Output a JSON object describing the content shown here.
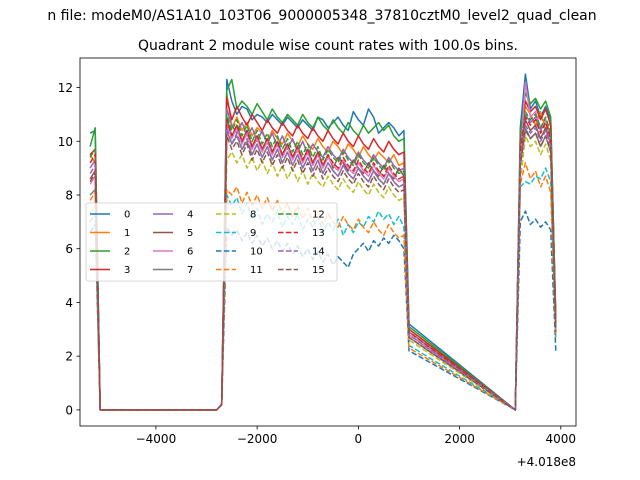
{
  "suptitle": "n file: modeM0/AS1A10_103T06_9000005348_37810cztM0_level2_quad_clean",
  "chart_data": {
    "type": "line",
    "title": "Quadrant 2 module wise count rates with 100.0s bins.",
    "xlabel": "",
    "ylabel": "",
    "x_offset_label": "+4.018e8",
    "xlim": [
      -5500,
      4300
    ],
    "ylim": [
      -0.6,
      13.1
    ],
    "xticks": [
      -4000,
      -2000,
      0,
      2000,
      4000
    ],
    "xtick_labels": [
      "−4000",
      "−2000",
      "0",
      "2000",
      "4000"
    ],
    "yticks": [
      0,
      2,
      4,
      6,
      8,
      10,
      12
    ],
    "ytick_labels": [
      "0",
      "2",
      "4",
      "6",
      "8",
      "10",
      "12"
    ],
    "grid": false,
    "legend": {
      "placement": "center-left",
      "columns": 4
    },
    "x": [
      -5300,
      -5200,
      -5100,
      -2800,
      -2700,
      -2600,
      -2500,
      -2400,
      -2300,
      -2200,
      -2100,
      -2000,
      -1900,
      -1800,
      -1700,
      -1600,
      -1500,
      -1400,
      -1300,
      -1200,
      -1100,
      -1000,
      -900,
      -800,
      -700,
      -600,
      -500,
      -400,
      -300,
      -200,
      -100,
      0,
      100,
      200,
      300,
      400,
      500,
      600,
      700,
      800,
      900,
      1000,
      3100,
      3200,
      3300,
      3400,
      3500,
      3600,
      3700,
      3800,
      3900
    ],
    "series": [
      {
        "name": "0",
        "color": "#1f77b4",
        "dash": false,
        "values": [
          10.3,
          10.4,
          0,
          0,
          0.2,
          12.3,
          11.5,
          11.0,
          11.3,
          11.2,
          10.8,
          11.0,
          10.9,
          10.7,
          11.0,
          10.8,
          10.6,
          10.9,
          10.7,
          10.5,
          10.8,
          10.6,
          10.4,
          10.9,
          10.8,
          10.5,
          10.7,
          10.9,
          10.6,
          10.4,
          11.1,
          10.8,
          10.6,
          11.2,
          10.9,
          10.3,
          10.5,
          10.7,
          10.5,
          10.2,
          10.4,
          3.2,
          0,
          10.5,
          12.5,
          11.2,
          11.5,
          10.9,
          11.3,
          10.8,
          3.5
        ]
      },
      {
        "name": "1",
        "color": "#ff7f0e",
        "dash": false,
        "values": [
          9.5,
          9.2,
          0,
          0,
          0.2,
          11.8,
          10.5,
          10.9,
          10.4,
          10.7,
          10.2,
          10.5,
          10.3,
          10.0,
          10.4,
          10.1,
          9.9,
          10.3,
          10.0,
          9.8,
          10.2,
          9.9,
          9.7,
          10.1,
          9.8,
          9.6,
          10.0,
          9.8,
          9.5,
          9.9,
          9.7,
          9.4,
          9.8,
          9.5,
          9.3,
          9.6,
          9.4,
          9.2,
          9.5,
          9.1,
          9.2,
          3.0,
          0,
          10.0,
          11.3,
          11.0,
          10.6,
          11.1,
          10.4,
          10.7,
          3.3
        ]
      },
      {
        "name": "2",
        "color": "#2ca02c",
        "dash": false,
        "values": [
          9.8,
          10.5,
          0,
          0,
          0.2,
          11.9,
          12.3,
          11.2,
          11.5,
          11.3,
          11.0,
          11.4,
          11.1,
          10.8,
          11.2,
          10.9,
          10.7,
          11.0,
          10.8,
          10.6,
          11.0,
          10.7,
          10.5,
          10.9,
          10.6,
          10.4,
          10.8,
          10.5,
          10.3,
          10.7,
          10.4,
          10.2,
          10.6,
          10.3,
          10.5,
          10.7,
          10.4,
          10.6,
          10.2,
          10.0,
          10.1,
          3.1,
          0,
          10.2,
          11.8,
          11.4,
          11.6,
          11.2,
          11.5,
          10.9,
          3.4
        ]
      },
      {
        "name": "3",
        "color": "#d62728",
        "dash": false,
        "values": [
          9.5,
          9.7,
          0,
          0,
          0.2,
          11.6,
          10.8,
          11.3,
          10.9,
          10.6,
          11.0,
          10.7,
          10.4,
          10.8,
          10.5,
          10.3,
          10.7,
          10.4,
          10.2,
          10.6,
          10.3,
          10.1,
          10.5,
          10.2,
          10.0,
          10.4,
          10.1,
          9.9,
          10.3,
          10.0,
          9.8,
          10.2,
          9.9,
          9.7,
          10.1,
          9.8,
          9.6,
          10.0,
          9.7,
          9.5,
          9.6,
          3.0,
          0,
          9.9,
          11.5,
          11.1,
          11.3,
          10.8,
          11.2,
          10.6,
          3.3
        ]
      },
      {
        "name": "4",
        "color": "#9467bd",
        "dash": false,
        "values": [
          9.0,
          9.3,
          0,
          0,
          0.2,
          11.2,
          10.6,
          10.3,
          10.7,
          10.2,
          10.5,
          10.0,
          10.4,
          9.9,
          10.3,
          9.8,
          10.2,
          9.7,
          10.1,
          9.6,
          10.0,
          9.5,
          9.9,
          9.6,
          9.4,
          9.8,
          9.5,
          9.3,
          9.7,
          9.4,
          9.2,
          9.6,
          9.3,
          9.1,
          9.5,
          9.2,
          9.0,
          9.4,
          9.1,
          8.9,
          9.0,
          2.9,
          0,
          9.6,
          11.0,
          10.7,
          10.9,
          10.4,
          10.8,
          10.2,
          3.2
        ]
      },
      {
        "name": "5",
        "color": "#8c564b",
        "dash": false,
        "values": [
          8.6,
          8.9,
          0,
          0,
          0.2,
          10.9,
          10.2,
          10.6,
          10.0,
          10.4,
          9.8,
          10.2,
          9.7,
          10.1,
          9.6,
          10.0,
          9.5,
          9.9,
          9.4,
          9.8,
          9.3,
          9.7,
          9.2,
          9.6,
          9.1,
          9.5,
          9.0,
          9.4,
          9.2,
          8.9,
          9.3,
          9.0,
          8.8,
          9.2,
          8.9,
          8.7,
          9.1,
          8.8,
          8.6,
          9.0,
          8.7,
          2.8,
          0,
          9.4,
          10.8,
          10.4,
          10.6,
          10.1,
          10.5,
          9.9,
          3.1
        ]
      },
      {
        "name": "6",
        "color": "#e377c2",
        "dash": false,
        "values": [
          8.4,
          8.7,
          0,
          0,
          0.2,
          10.7,
          10.1,
          10.5,
          9.9,
          10.3,
          9.7,
          10.1,
          9.6,
          10.0,
          9.5,
          9.9,
          9.4,
          9.8,
          9.3,
          9.7,
          9.2,
          9.6,
          9.1,
          9.5,
          9.0,
          9.4,
          9.1,
          8.9,
          9.3,
          9.0,
          8.8,
          9.2,
          8.9,
          8.7,
          9.1,
          8.8,
          8.6,
          9.0,
          8.7,
          8.5,
          8.6,
          2.8,
          0,
          9.3,
          12.2,
          10.9,
          11.1,
          10.5,
          10.8,
          10.0,
          3.0
        ]
      },
      {
        "name": "7",
        "color": "#7f7f7f",
        "dash": false,
        "values": [
          8.0,
          8.2,
          0,
          0,
          0.2,
          10.4,
          9.9,
          10.2,
          9.7,
          10.0,
          9.5,
          9.9,
          9.4,
          9.8,
          9.3,
          9.7,
          9.2,
          9.6,
          9.1,
          9.5,
          9.0,
          9.4,
          8.9,
          9.3,
          8.8,
          9.2,
          8.9,
          8.7,
          9.1,
          8.8,
          8.6,
          9.0,
          8.7,
          8.5,
          8.9,
          8.6,
          8.4,
          8.8,
          8.5,
          8.3,
          8.4,
          2.7,
          0,
          9.1,
          10.5,
          10.1,
          10.3,
          9.8,
          10.2,
          9.6,
          3.0
        ]
      },
      {
        "name": "8",
        "color": "#bcbd22",
        "dash": true,
        "values": [
          7.3,
          7.6,
          0,
          0,
          0.2,
          9.3,
          9.6,
          9.2,
          9.5,
          9.0,
          9.4,
          8.9,
          9.3,
          8.8,
          9.2,
          8.7,
          9.1,
          8.6,
          9.0,
          8.5,
          8.9,
          8.4,
          8.8,
          8.5,
          8.3,
          8.7,
          8.4,
          8.2,
          8.6,
          8.3,
          8.1,
          8.5,
          8.2,
          8.0,
          8.4,
          8.1,
          7.9,
          8.3,
          8.0,
          7.8,
          7.9,
          2.6,
          0,
          8.5,
          10.2,
          9.8,
          10.0,
          9.5,
          9.9,
          9.3,
          2.9
        ]
      },
      {
        "name": "9",
        "color": "#17becf",
        "dash": true,
        "values": [
          7.0,
          7.3,
          0,
          0,
          0.2,
          8.0,
          7.6,
          7.9,
          7.3,
          7.7,
          7.1,
          7.5,
          6.9,
          7.3,
          7.0,
          7.4,
          6.8,
          7.2,
          6.9,
          7.3,
          6.7,
          7.1,
          6.8,
          7.2,
          6.6,
          7.0,
          6.7,
          7.1,
          6.5,
          6.9,
          6.6,
          7.0,
          6.8,
          7.2,
          7.0,
          7.4,
          7.1,
          7.3,
          6.9,
          7.2,
          6.8,
          2.4,
          0,
          8.3,
          8.5,
          8.4,
          8.7,
          8.6,
          9.0,
          8.5,
          2.6
        ]
      },
      {
        "name": "10",
        "color": "#1f77b4",
        "dash": true,
        "values": [
          6.6,
          6.9,
          0,
          0,
          0.2,
          6.8,
          6.5,
          6.7,
          6.3,
          6.6,
          6.2,
          6.5,
          6.1,
          6.4,
          6.0,
          6.3,
          5.9,
          6.2,
          5.8,
          6.1,
          5.7,
          6.0,
          5.6,
          5.9,
          5.5,
          5.8,
          5.4,
          5.7,
          5.5,
          5.3,
          5.8,
          6.0,
          6.2,
          5.9,
          6.3,
          6.1,
          6.4,
          6.2,
          6.5,
          6.3,
          6.0,
          2.2,
          0,
          7.0,
          7.4,
          6.9,
          7.1,
          6.8,
          7.0,
          6.7,
          2.2
        ]
      },
      {
        "name": "11",
        "color": "#ff7f0e",
        "dash": true,
        "values": [
          7.8,
          8.1,
          0,
          0,
          0.2,
          8.2,
          8.0,
          8.3,
          7.7,
          8.1,
          7.6,
          8.0,
          7.5,
          7.9,
          7.4,
          7.8,
          7.3,
          7.7,
          7.2,
          7.6,
          7.1,
          7.5,
          7.0,
          7.4,
          6.9,
          7.3,
          7.0,
          6.8,
          7.2,
          6.9,
          6.7,
          7.1,
          6.8,
          6.6,
          7.0,
          6.7,
          6.5,
          6.9,
          6.6,
          6.4,
          6.5,
          2.3,
          0,
          8.4,
          9.2,
          8.6,
          8.9,
          8.3,
          8.7,
          8.1,
          2.7
        ]
      },
      {
        "name": "12",
        "color": "#2ca02c",
        "dash": true,
        "values": [
          9.4,
          9.7,
          0,
          0,
          0.2,
          11.0,
          10.4,
          10.8,
          10.2,
          10.6,
          10.0,
          10.4,
          9.9,
          10.3,
          9.8,
          10.2,
          9.7,
          10.1,
          9.6,
          10.0,
          9.5,
          9.9,
          9.4,
          9.8,
          9.3,
          9.7,
          9.4,
          9.2,
          9.6,
          9.3,
          9.1,
          9.5,
          9.2,
          9.0,
          9.4,
          9.1,
          8.9,
          9.3,
          9.0,
          8.8,
          8.9,
          2.9,
          0,
          9.7,
          11.1,
          10.8,
          11.0,
          10.5,
          10.9,
          10.3,
          3.2
        ]
      },
      {
        "name": "13",
        "color": "#d62728",
        "dash": true,
        "values": [
          9.2,
          9.5,
          0,
          0,
          0.2,
          10.8,
          10.2,
          10.6,
          10.0,
          10.4,
          9.8,
          10.2,
          9.7,
          10.1,
          9.6,
          10.0,
          9.5,
          9.9,
          9.4,
          9.8,
          9.3,
          9.7,
          9.2,
          9.6,
          9.1,
          9.5,
          9.2,
          9.0,
          9.4,
          9.1,
          8.9,
          9.3,
          9.0,
          8.8,
          9.2,
          8.9,
          8.7,
          9.1,
          8.8,
          8.6,
          8.7,
          2.9,
          0,
          9.6,
          10.9,
          10.6,
          10.8,
          10.3,
          10.7,
          10.1,
          3.1
        ]
      },
      {
        "name": "14",
        "color": "#9467bd",
        "dash": true,
        "values": [
          8.8,
          9.1,
          0,
          0,
          0.2,
          10.5,
          9.9,
          10.3,
          9.7,
          10.1,
          9.5,
          9.9,
          9.4,
          9.8,
          9.3,
          9.7,
          9.2,
          9.6,
          9.1,
          9.5,
          9.0,
          9.4,
          8.9,
          9.3,
          8.8,
          9.2,
          8.9,
          8.7,
          9.1,
          8.8,
          8.6,
          9.0,
          8.7,
          8.5,
          8.9,
          8.6,
          8.4,
          8.8,
          8.5,
          8.3,
          8.4,
          2.8,
          0,
          9.3,
          10.6,
          10.3,
          10.5,
          10.0,
          10.4,
          9.8,
          3.0
        ]
      },
      {
        "name": "15",
        "color": "#8c564b",
        "dash": true,
        "values": [
          8.5,
          8.8,
          0,
          0,
          0.2,
          10.2,
          9.7,
          10.0,
          9.5,
          9.9,
          9.3,
          9.7,
          9.2,
          9.6,
          9.1,
          9.5,
          9.0,
          9.4,
          8.9,
          9.3,
          8.8,
          9.2,
          8.7,
          9.1,
          8.6,
          9.0,
          8.7,
          8.5,
          8.9,
          8.6,
          8.4,
          8.8,
          8.5,
          8.3,
          8.7,
          8.4,
          8.2,
          8.6,
          8.3,
          8.1,
          8.2,
          2.7,
          0,
          9.1,
          10.4,
          10.1,
          10.3,
          9.8,
          10.2,
          9.6,
          2.9
        ]
      }
    ]
  }
}
